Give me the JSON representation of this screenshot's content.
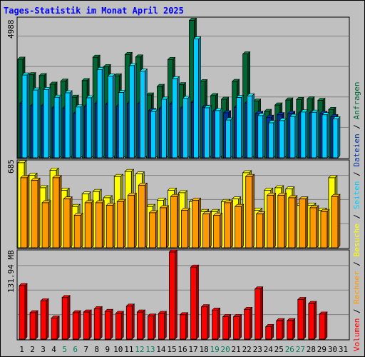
{
  "chart_data": [
    {
      "type": "bar",
      "panel": "top",
      "title": "Tages-Statistik im Monat April 2025",
      "yaxis_max_label": "4988",
      "ylim": [
        0,
        4988
      ],
      "grid": true,
      "categories": [
        "1",
        "2",
        "3",
        "4",
        "5",
        "6",
        "7",
        "8",
        "9",
        "10",
        "11",
        "12",
        "13",
        "14",
        "15",
        "16",
        "17",
        "18",
        "19",
        "20",
        "21",
        "22",
        "23",
        "24",
        "25",
        "26",
        "27",
        "28",
        "29",
        "30",
        "31"
      ],
      "weekend_days": [
        "5",
        "6",
        "12",
        "13",
        "19",
        "20",
        "26",
        "27"
      ],
      "series": [
        {
          "name": "Anfragen",
          "color": "#006633",
          "values": [
            3550,
            2990,
            2960,
            2650,
            2760,
            2180,
            2780,
            3620,
            3280,
            2950,
            3720,
            3630,
            2260,
            2570,
            3540,
            2630,
            4950,
            2740,
            2240,
            2110,
            2750,
            3740,
            2040,
            1670,
            1900,
            2080,
            2100,
            2120,
            2070,
            1740,
            null
          ]
        },
        {
          "name": "Dateien",
          "color": "#003399",
          "values": [
            1970,
            1880,
            1880,
            1800,
            1790,
            1600,
            1860,
            1960,
            1930,
            1860,
            1960,
            1960,
            1700,
            1780,
            1950,
            1800,
            2000,
            1820,
            1680,
            1620,
            1820,
            1970,
            1600,
            1460,
            1550,
            1600,
            1620,
            1620,
            1600,
            1480,
            null
          ]
        },
        {
          "name": "Seiten",
          "color": "#00ccff",
          "values": [
            2980,
            2440,
            2460,
            2180,
            2340,
            1830,
            2160,
            3180,
            2940,
            2350,
            3320,
            3120,
            1670,
            2110,
            2850,
            2140,
            4280,
            1800,
            1700,
            1360,
            2170,
            2230,
            1520,
            1260,
            1340,
            1490,
            1650,
            1640,
            1550,
            1400,
            null
          ]
        }
      ]
    },
    {
      "type": "bar",
      "panel": "middle",
      "yaxis_max_label": "685",
      "ylim": [
        0,
        685
      ],
      "grid": true,
      "series": [
        {
          "name": "Besuche",
          "color": "#ffff00",
          "values": [
            680,
            580,
            480,
            620,
            460,
            330,
            430,
            450,
            400,
            570,
            610,
            590,
            330,
            380,
            460,
            440,
            370,
            290,
            290,
            370,
            390,
            600,
            300,
            460,
            480,
            470,
            340,
            340,
            300,
            560,
            null
          ]
        },
        {
          "name": "Rechner",
          "color": "#ff9900",
          "values": [
            560,
            540,
            360,
            560,
            390,
            260,
            360,
            360,
            340,
            370,
            420,
            500,
            280,
            320,
            410,
            300,
            380,
            270,
            260,
            360,
            330,
            570,
            270,
            420,
            420,
            400,
            390,
            320,
            290,
            410,
            null
          ]
        }
      ]
    },
    {
      "type": "bar",
      "panel": "bottom",
      "yaxis_max_label": "131.94 MB",
      "ylim": [
        0,
        131.94
      ],
      "grid": true,
      "series": [
        {
          "name": "Volumen",
          "color": "#ff0000",
          "values": [
            81,
            40,
            58,
            32,
            63,
            40,
            41,
            46,
            42,
            39,
            50,
            41,
            35,
            39,
            131.94,
            37,
            109,
            49,
            44,
            34,
            34,
            45,
            76,
            19,
            28,
            28,
            60,
            54,
            38,
            null,
            null
          ]
        }
      ]
    }
  ],
  "right_legend": [
    {
      "text": "Volumen",
      "color": "#ff0000"
    },
    {
      "text": " / ",
      "color": "#000000"
    },
    {
      "text": "Rechner",
      "color": "#ff9900"
    },
    {
      "text": " / ",
      "color": "#000000"
    },
    {
      "text": "Besuche",
      "color": "#ffff00"
    },
    {
      "text": " / ",
      "color": "#000000"
    },
    {
      "text": "Seiten",
      "color": "#00ccff"
    },
    {
      "text": " / ",
      "color": "#000000"
    },
    {
      "text": "Dateien",
      "color": "#003399"
    },
    {
      "text": " / ",
      "color": "#000000"
    },
    {
      "text": "Anfragen",
      "color": "#006633"
    }
  ],
  "colors": {
    "background": "#c0c0c0",
    "title": "#0000ff",
    "weekday_label": "#000000",
    "weekend_label": "#00805c",
    "grid": "#808080"
  }
}
